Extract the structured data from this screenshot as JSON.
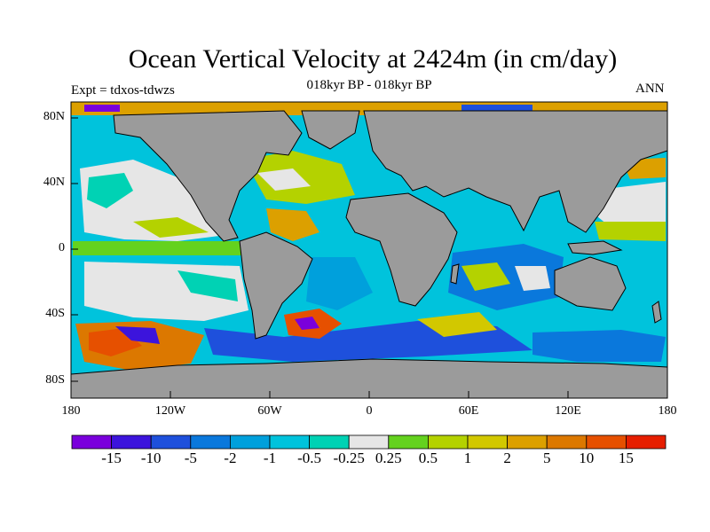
{
  "title": "Ocean Vertical Velocity at 2424m (in cm/day)",
  "subtitle": "018kyr BP - 018kyr BP",
  "experiment": "Expt = tdxos-tdwzs",
  "season": "ANN",
  "lat_labels": [
    "80N",
    "40N",
    "0",
    "40S",
    "80S"
  ],
  "lon_labels": [
    "180",
    "120W",
    "60W",
    "0",
    "60E",
    "120E",
    "180"
  ],
  "colorbar": {
    "labels": [
      "-15",
      "-10",
      "-5",
      "-2",
      "-1",
      "-0.5",
      "-0.25",
      "0.25",
      "0.5",
      "1",
      "2",
      "5",
      "10",
      "15"
    ],
    "colors": [
      "#7a00dc",
      "#3c14dc",
      "#1e50dc",
      "#0a78dc",
      "#00a0dc",
      "#00c3dc",
      "#00d2b4",
      "#e6e6e6",
      "#64d21e",
      "#b4d200",
      "#d2c800",
      "#dca000",
      "#dc7800",
      "#e65000",
      "#e61e00"
    ]
  },
  "map_colors": {
    "land": "#9b9b9b",
    "coast": "#000000"
  }
}
